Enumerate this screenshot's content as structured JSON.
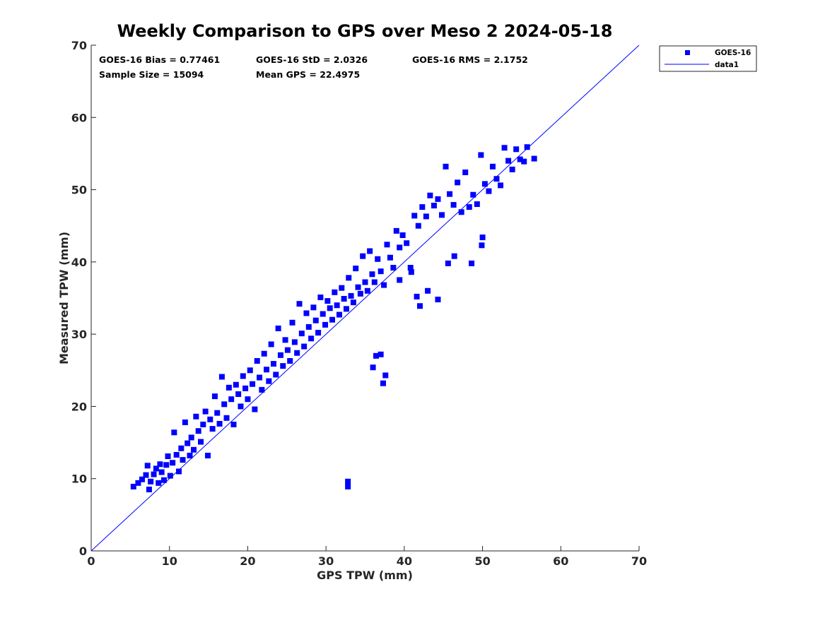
{
  "chart_data": {
    "type": "scatter",
    "title": "Weekly Comparison to GPS over Meso 2 2024-05-18",
    "xlabel": "GPS TPW (mm)",
    "ylabel": "Measured TPW (mm)",
    "xlim": [
      0,
      70
    ],
    "ylim": [
      0,
      70
    ],
    "xticks": [
      "0",
      "10",
      "20",
      "30",
      "40",
      "50",
      "60",
      "70"
    ],
    "yticks": [
      "0",
      "10",
      "20",
      "30",
      "40",
      "50",
      "60",
      "70"
    ],
    "grid": false,
    "legend_position": "outside-top-right",
    "stats": {
      "bias": "GOES-16 Bias = 0.77461",
      "std": "GOES-16 StD = 2.0326",
      "rms": "GOES-16 RMS = 2.1752",
      "sample_size": "Sample Size = 15094",
      "mean_gps": "Mean GPS = 22.4975"
    },
    "series": [
      {
        "name": "GOES-16",
        "type": "scatter",
        "marker": "square",
        "color": "#0000ff",
        "points": [
          [
            5.4,
            8.9
          ],
          [
            6.0,
            9.4
          ],
          [
            6.5,
            9.9
          ],
          [
            7.0,
            10.5
          ],
          [
            7.2,
            11.8
          ],
          [
            7.4,
            8.5
          ],
          [
            7.6,
            9.6
          ],
          [
            8.0,
            10.6
          ],
          [
            8.3,
            11.4
          ],
          [
            8.6,
            9.4
          ],
          [
            8.8,
            12.0
          ],
          [
            9.0,
            10.9
          ],
          [
            9.3,
            9.8
          ],
          [
            9.6,
            11.9
          ],
          [
            9.8,
            13.1
          ],
          [
            10.1,
            10.4
          ],
          [
            10.4,
            12.2
          ],
          [
            10.6,
            16.4
          ],
          [
            10.9,
            13.3
          ],
          [
            11.2,
            11.0
          ],
          [
            11.5,
            14.2
          ],
          [
            11.7,
            12.6
          ],
          [
            12.0,
            17.8
          ],
          [
            12.3,
            14.9
          ],
          [
            12.6,
            13.2
          ],
          [
            12.8,
            15.7
          ],
          [
            13.1,
            14.0
          ],
          [
            13.4,
            18.6
          ],
          [
            13.7,
            16.6
          ],
          [
            14.0,
            15.1
          ],
          [
            14.3,
            17.5
          ],
          [
            14.6,
            19.3
          ],
          [
            14.9,
            13.2
          ],
          [
            15.2,
            18.2
          ],
          [
            15.5,
            16.9
          ],
          [
            15.8,
            21.4
          ],
          [
            16.1,
            19.1
          ],
          [
            16.4,
            17.6
          ],
          [
            16.7,
            24.1
          ],
          [
            17.0,
            20.3
          ],
          [
            17.3,
            18.4
          ],
          [
            17.6,
            22.6
          ],
          [
            17.9,
            21.0
          ],
          [
            18.2,
            17.5
          ],
          [
            18.5,
            23.0
          ],
          [
            18.8,
            21.7
          ],
          [
            19.1,
            20.0
          ],
          [
            19.4,
            24.2
          ],
          [
            19.7,
            22.5
          ],
          [
            20.0,
            21.0
          ],
          [
            20.3,
            25.0
          ],
          [
            20.6,
            23.1
          ],
          [
            20.9,
            19.6
          ],
          [
            21.2,
            26.3
          ],
          [
            21.5,
            24.0
          ],
          [
            21.8,
            22.3
          ],
          [
            22.1,
            27.3
          ],
          [
            22.4,
            25.1
          ],
          [
            22.7,
            23.5
          ],
          [
            23.0,
            28.6
          ],
          [
            23.3,
            25.9
          ],
          [
            23.6,
            24.4
          ],
          [
            23.9,
            30.8
          ],
          [
            24.2,
            27.1
          ],
          [
            24.5,
            25.6
          ],
          [
            24.8,
            29.2
          ],
          [
            25.1,
            27.8
          ],
          [
            25.4,
            26.3
          ],
          [
            25.7,
            31.6
          ],
          [
            26.0,
            28.9
          ],
          [
            26.3,
            27.4
          ],
          [
            26.6,
            34.2
          ],
          [
            26.9,
            30.1
          ],
          [
            27.2,
            28.3
          ],
          [
            27.5,
            32.9
          ],
          [
            27.8,
            31.0
          ],
          [
            28.1,
            29.4
          ],
          [
            28.4,
            33.7
          ],
          [
            28.7,
            31.9
          ],
          [
            29.0,
            30.2
          ],
          [
            29.3,
            35.1
          ],
          [
            29.6,
            32.8
          ],
          [
            29.9,
            31.3
          ],
          [
            30.2,
            34.6
          ],
          [
            30.5,
            33.6
          ],
          [
            30.8,
            32.0
          ],
          [
            31.1,
            35.8
          ],
          [
            31.4,
            34.0
          ],
          [
            31.7,
            32.7
          ],
          [
            32.0,
            36.4
          ],
          [
            32.3,
            34.9
          ],
          [
            32.6,
            33.5
          ],
          [
            32.9,
            37.8
          ],
          [
            33.2,
            35.3
          ],
          [
            33.5,
            34.4
          ],
          [
            33.8,
            39.1
          ],
          [
            34.1,
            36.5
          ],
          [
            34.4,
            35.6
          ],
          [
            34.7,
            40.8
          ],
          [
            35.0,
            37.2
          ],
          [
            35.3,
            36.0
          ],
          [
            35.6,
            41.5
          ],
          [
            35.9,
            38.3
          ],
          [
            36.2,
            37.2
          ],
          [
            36.6,
            40.4
          ],
          [
            37.0,
            38.7
          ],
          [
            37.4,
            36.8
          ],
          [
            37.8,
            42.4
          ],
          [
            38.2,
            40.6
          ],
          [
            38.6,
            39.2
          ],
          [
            39.0,
            44.3
          ],
          [
            39.4,
            42.0
          ],
          [
            39.8,
            43.7
          ],
          [
            40.3,
            42.6
          ],
          [
            40.8,
            39.2
          ],
          [
            41.3,
            46.4
          ],
          [
            41.8,
            45.0
          ],
          [
            42.3,
            47.6
          ],
          [
            42.8,
            46.3
          ],
          [
            43.3,
            49.2
          ],
          [
            43.8,
            47.8
          ],
          [
            44.3,
            48.7
          ],
          [
            44.8,
            46.5
          ],
          [
            45.3,
            53.2
          ],
          [
            45.8,
            49.4
          ],
          [
            46.3,
            47.9
          ],
          [
            46.8,
            51.0
          ],
          [
            47.3,
            46.9
          ],
          [
            47.8,
            52.4
          ],
          [
            48.3,
            47.6
          ],
          [
            48.8,
            49.3
          ],
          [
            49.3,
            48.0
          ],
          [
            49.8,
            54.8
          ],
          [
            50.3,
            50.8
          ],
          [
            50.8,
            49.8
          ],
          [
            51.3,
            53.2
          ],
          [
            51.8,
            51.5
          ],
          [
            52.3,
            50.6
          ],
          [
            52.8,
            55.8
          ],
          [
            53.3,
            54.0
          ],
          [
            53.8,
            52.8
          ],
          [
            54.3,
            55.6
          ],
          [
            54.8,
            54.2
          ],
          [
            55.3,
            53.9
          ],
          [
            55.7,
            55.9
          ],
          [
            56.6,
            54.3
          ],
          [
            37.3,
            23.2
          ],
          [
            37.0,
            27.2
          ],
          [
            36.0,
            25.4
          ],
          [
            36.4,
            27.0
          ],
          [
            37.6,
            24.3
          ],
          [
            32.8,
            9.6
          ],
          [
            32.8,
            8.9
          ],
          [
            42.0,
            33.9
          ],
          [
            44.3,
            34.8
          ],
          [
            45.6,
            39.8
          ],
          [
            46.4,
            40.8
          ],
          [
            49.9,
            42.3
          ],
          [
            50.0,
            43.4
          ],
          [
            48.6,
            39.8
          ],
          [
            41.6,
            35.2
          ],
          [
            43.0,
            36.0
          ],
          [
            39.4,
            37.5
          ],
          [
            40.9,
            38.6
          ]
        ]
      },
      {
        "name": "data1",
        "type": "line",
        "color": "#0000ff",
        "points": [
          [
            0,
            0
          ],
          [
            70,
            70
          ]
        ]
      }
    ]
  }
}
